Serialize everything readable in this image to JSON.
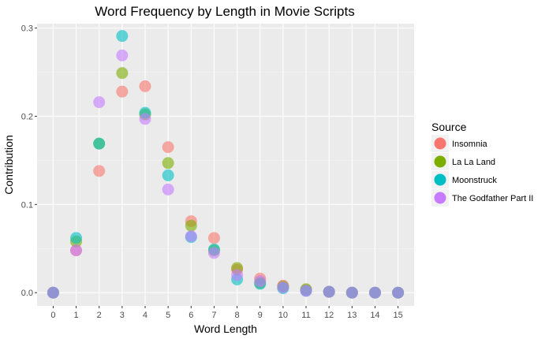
{
  "chart_data": {
    "type": "scatter",
    "title": "Word Frequency by Length in Movie Scripts",
    "xlabel": "Word Length",
    "ylabel": "Contribution",
    "xlim": [
      -0.7,
      15.7
    ],
    "ylim": [
      -0.015,
      0.305
    ],
    "x_ticks": [
      0,
      1,
      2,
      3,
      4,
      5,
      6,
      7,
      8,
      9,
      10,
      11,
      12,
      13,
      14,
      15
    ],
    "x_tick_labels": [
      "0",
      "1",
      "2",
      "3",
      "4",
      "5",
      "6",
      "7",
      "8",
      "9",
      "10",
      "11",
      "12",
      "13",
      "14",
      "15"
    ],
    "y_ticks": [
      0.0,
      0.1,
      0.2,
      0.3
    ],
    "y_tick_labels": [
      "0.0",
      "0.1",
      "0.2",
      "0.3"
    ],
    "grid": true,
    "legend": {
      "title": "Source",
      "placement": "right"
    },
    "series": [
      {
        "name": "Insomnia",
        "color": "#F8766D",
        "x": [
          0,
          1,
          2,
          3,
          4,
          5,
          6,
          7,
          8,
          9,
          10,
          11,
          12,
          13,
          14,
          15
        ],
        "y": [
          0.0,
          0.048,
          0.138,
          0.228,
          0.234,
          0.165,
          0.081,
          0.062,
          0.026,
          0.016,
          0.008,
          0.003,
          0.001,
          0.0,
          0.0,
          0.0
        ]
      },
      {
        "name": "La La Land",
        "color": "#7CAE00",
        "x": [
          0,
          1,
          2,
          3,
          4,
          5,
          6,
          7,
          8,
          9,
          10,
          11,
          12,
          13,
          14,
          15
        ],
        "y": [
          0.0,
          0.058,
          0.169,
          0.249,
          0.202,
          0.147,
          0.076,
          0.048,
          0.028,
          0.011,
          0.007,
          0.004,
          0.001,
          0.0,
          0.0,
          0.0
        ]
      },
      {
        "name": "Moonstruck",
        "color": "#00BFC4",
        "x": [
          0,
          1,
          2,
          3,
          4,
          5,
          6,
          7,
          8,
          9,
          10,
          11,
          12,
          13,
          14,
          15
        ],
        "y": [
          0.0,
          0.062,
          0.169,
          0.291,
          0.204,
          0.133,
          0.063,
          0.049,
          0.015,
          0.01,
          0.005,
          0.002,
          0.001,
          0.0,
          0.0,
          0.0
        ]
      },
      {
        "name": "The Godfather Part II",
        "color": "#C77CFF",
        "x": [
          0,
          1,
          2,
          3,
          4,
          5,
          6,
          7,
          8,
          9,
          10,
          11,
          12,
          13,
          14,
          15
        ],
        "y": [
          0.0,
          0.048,
          0.216,
          0.269,
          0.197,
          0.117,
          0.064,
          0.045,
          0.02,
          0.013,
          0.006,
          0.002,
          0.001,
          0.0,
          0.0,
          0.0
        ]
      }
    ]
  }
}
